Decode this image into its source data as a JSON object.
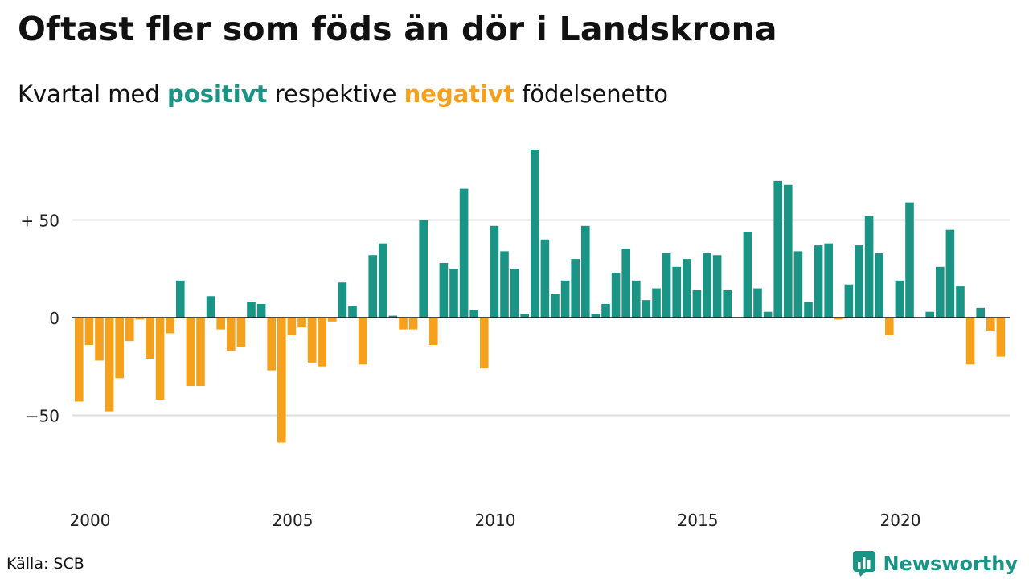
{
  "header": {
    "title": "Oftast fler som föds än dör i Landskrona",
    "subtitle_pre": "Kvartal med",
    "subtitle_pos": "positivt",
    "subtitle_mid": "respektive",
    "subtitle_neg": "negativt",
    "subtitle_post": "födelsenetto"
  },
  "footer": {
    "source": "Källa: SCB",
    "brand": "Newsworthy"
  },
  "colors": {
    "positive": "#1a9485",
    "negative": "#f5a11c",
    "grid": "#dddddd",
    "zero": "#111111"
  },
  "chart_data": {
    "type": "bar",
    "x_start": 2000,
    "x_step": 0.25,
    "xlim": [
      2000,
      2023.75
    ],
    "ylim": [
      -80,
      90
    ],
    "y_ticks": [
      {
        "value": 50,
        "label": "+ 50"
      },
      {
        "value": 0,
        "label": "0"
      },
      {
        "value": -50,
        "label": "−50"
      }
    ],
    "x_ticks": [
      {
        "value": 2000,
        "label": "2000"
      },
      {
        "value": 2005,
        "label": "2005"
      },
      {
        "value": 2010,
        "label": "2010"
      },
      {
        "value": 2015,
        "label": "2015"
      },
      {
        "value": 2020,
        "label": "2020"
      }
    ],
    "grid": true,
    "values": [
      -43,
      -14,
      -22,
      -48,
      -31,
      -12,
      -1,
      -21,
      -42,
      -8,
      19,
      -35,
      -35,
      11,
      -6,
      -17,
      -15,
      8,
      7,
      -27,
      -64,
      -9,
      -5,
      -23,
      -25,
      -2,
      18,
      6,
      -24,
      32,
      38,
      1,
      -6,
      -6,
      50,
      -14,
      28,
      25,
      66,
      4,
      -26,
      47,
      34,
      25,
      2,
      86,
      40,
      12,
      19,
      30,
      47,
      2,
      7,
      23,
      35,
      19,
      9,
      15,
      33,
      26,
      30,
      14,
      33,
      32,
      14,
      0,
      44,
      15,
      3,
      70,
      68,
      34,
      8,
      37,
      38,
      -1,
      17,
      37,
      52,
      33,
      -9,
      19,
      59,
      0,
      3,
      26,
      45,
      16,
      -24,
      5,
      -7,
      -20
    ]
  }
}
